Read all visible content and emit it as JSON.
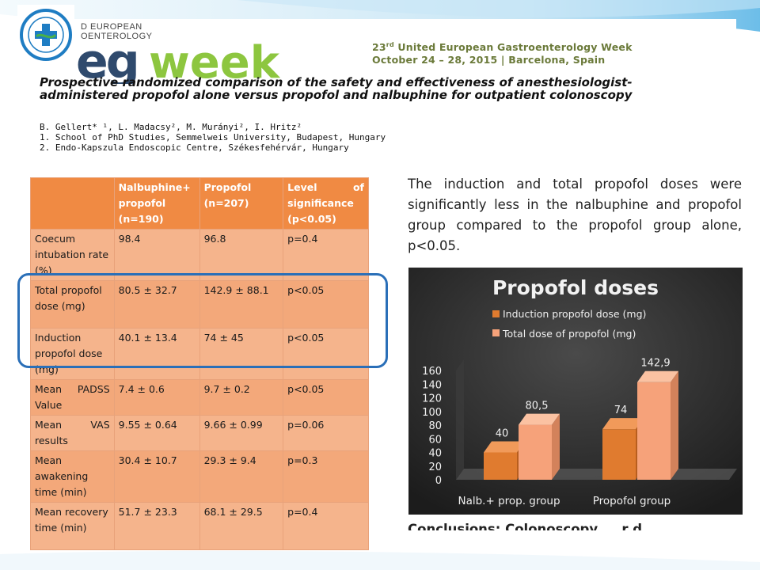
{
  "colors": {
    "table_header": "#f08a43",
    "table_row": "#f5b48c",
    "highlight": "#2a6fb8",
    "induction_bar": "#e07b2f",
    "total_bar": "#f6a27a",
    "conference_green": "#6b7a3a",
    "eg_blue": "#2f4a6d",
    "week_green": "#8dc63f"
  },
  "header": {
    "logo_icon": "hospital-seal-icon",
    "ueg_line1": "D EUROPEAN",
    "ueg_line2": "OENTEROLOGY",
    "eg": "eg",
    "week": "week",
    "conf_ordinal": "23",
    "conf_sup": "rd",
    "conf_name": " United European Gastroenterology Week",
    "conf_date": "October 24 – 28, 2015 | Barcelona, Spain"
  },
  "paper": {
    "title": "Prospective randomized comparison of the safety and effectiveness of anesthesiologist-administered propofol alone versus propofol and nalbuphine for outpatient colonoscopy",
    "authors": "B. Gellert* ¹, L. Madacsy², M. Murányi², I. Hritz²",
    "affiliation1": "1. School of PhD Studies, Semmelweis University, Budapest, Hungary",
    "affiliation2": "2. Endo-Kapszula Endoscopic Centre, Székesfehérvár, Hungary"
  },
  "table": {
    "headers": [
      "",
      "Nalbuphine+ propofol (n=190)",
      "Propofol (n=207)",
      "Level of significance (p<0.05)"
    ],
    "rows": [
      [
        "Coecum intubation rate (%)",
        "98.4",
        "96.8",
        "p=0.4"
      ],
      [
        "Total propofol dose (mg)",
        "80.5 ± 32.7",
        "142.9 ± 88.1",
        "p<0.05"
      ],
      [
        "Induction propofol dose (mg)",
        "40.1 ± 13.4",
        "74 ± 45",
        "p<0.05"
      ],
      [
        "Mean PADSS Value",
        "7.4 ± 0.6",
        "9.7 ± 0.2",
        "p<0.05"
      ],
      [
        "Mean VAS results",
        "9.55 ± 0.64",
        "9.66 ± 0.99",
        "p=0.06"
      ],
      [
        "Mean awakening time (min)",
        "30.4 ± 10.7",
        "29.3 ± 9.4",
        "p=0.3"
      ],
      [
        "Mean recovery time (min)",
        "51.7 ± 23.3",
        "68.1 ± 29.5",
        "p=0.4"
      ]
    ]
  },
  "finding": "The induction and total propofol doses were significantly less in the nalbuphine and propofol group compared to the propofol group alone, p<0.05.",
  "chart_data": {
    "type": "bar",
    "title": "Propofol doses",
    "categories": [
      "Nalb.+ prop. group",
      "Propofol group"
    ],
    "series": [
      {
        "name": "Induction propofol dose (mg)",
        "values": [
          40,
          74
        ],
        "labels": [
          "40",
          "74"
        ]
      },
      {
        "name": "Total dose of propofol (mg)",
        "values": [
          80.5,
          142.9
        ],
        "labels": [
          "80,5",
          "142,9"
        ]
      }
    ],
    "yticks": [
      "0",
      "20",
      "40",
      "60",
      "80",
      "100",
      "120",
      "140",
      "160"
    ],
    "ylim": [
      0,
      160
    ],
    "legend": "top-left",
    "grid": false,
    "style": "3d-column"
  },
  "conclusion_partial": "Conclusions: Colonoscopy ... r d"
}
